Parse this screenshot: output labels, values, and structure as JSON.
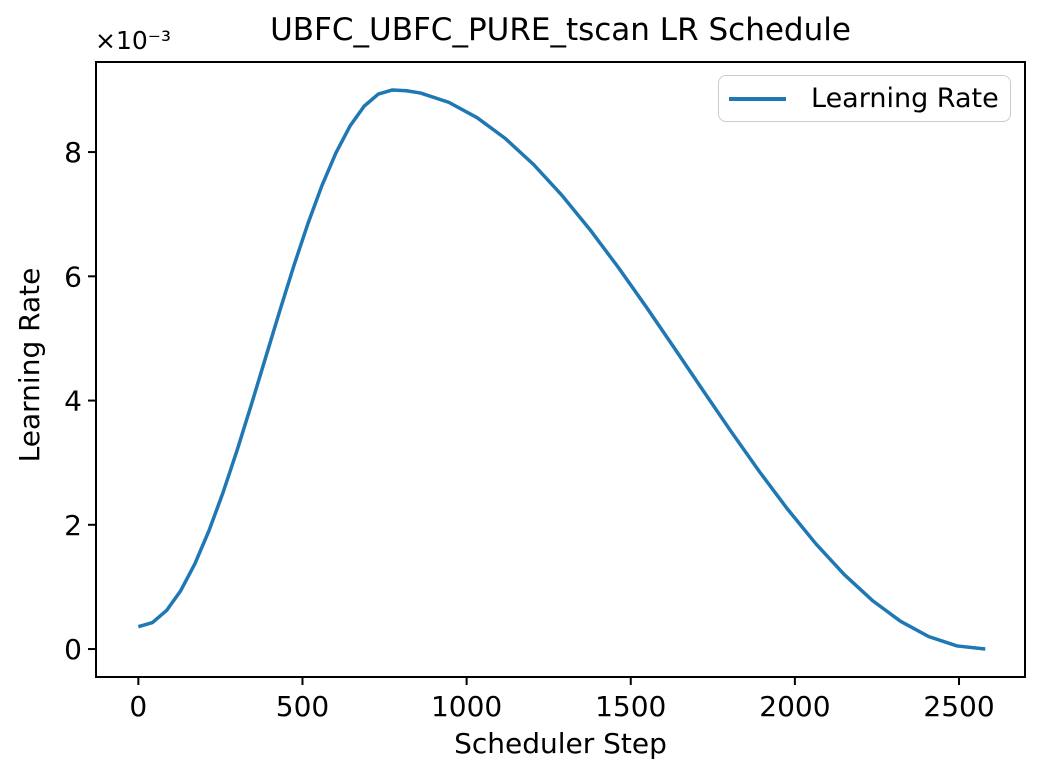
{
  "figure": {
    "background": "#ffffff",
    "text_color": "#000000"
  },
  "chart_data": {
    "type": "line",
    "title": "UBFC_UBFC_PURE_tscan LR Schedule",
    "xlabel": "Scheduler Step",
    "ylabel": "Learning Rate",
    "y_offset_text": "×10⁻³",
    "grid": false,
    "xlim": [
      -129,
      2701
    ],
    "ylim": [
      -0.00045,
      0.00945
    ],
    "x_ticks": [
      0,
      500,
      1000,
      1500,
      2000,
      2500
    ],
    "x_tick_labels": [
      "0",
      "500",
      "1000",
      "1500",
      "2000",
      "2500"
    ],
    "y_ticks": [
      0,
      0.002,
      0.004,
      0.006,
      0.008
    ],
    "y_tick_labels": [
      "0",
      "2",
      "4",
      "6",
      "8"
    ],
    "legend": {
      "position": "upper right",
      "entries": [
        {
          "label": "Learning Rate",
          "color": "#1f77b4"
        }
      ]
    },
    "series": [
      {
        "name": "Learning Rate",
        "color": "#1f77b4",
        "x": [
          0,
          43,
          86,
          129,
          172,
          215,
          258,
          301,
          344,
          387,
          430,
          473,
          516,
          559,
          602,
          645,
          688,
          731,
          774,
          817,
          860,
          946,
          1032,
          1118,
          1204,
          1290,
          1376,
          1462,
          1548,
          1634,
          1720,
          1806,
          1892,
          1978,
          2064,
          2150,
          2236,
          2322,
          2408,
          2494,
          2580
        ],
        "y": [
          0.00036,
          0.000426,
          0.000621,
          0.000939,
          0.001371,
          0.001903,
          0.00252,
          0.003203,
          0.00393,
          0.00468,
          0.00543,
          0.006158,
          0.00684,
          0.007457,
          0.007989,
          0.008421,
          0.00874,
          0.008934,
          0.009,
          0.008987,
          0.00895,
          0.0088,
          0.008554,
          0.008218,
          0.0078,
          0.007306,
          0.00675,
          0.006144,
          0.005501,
          0.004836,
          0.004164,
          0.003499,
          0.002856,
          0.00225,
          0.001694,
          0.001201,
          0.000782,
          0.000446,
          0.0002,
          5e-05,
          0.0
        ]
      }
    ]
  }
}
